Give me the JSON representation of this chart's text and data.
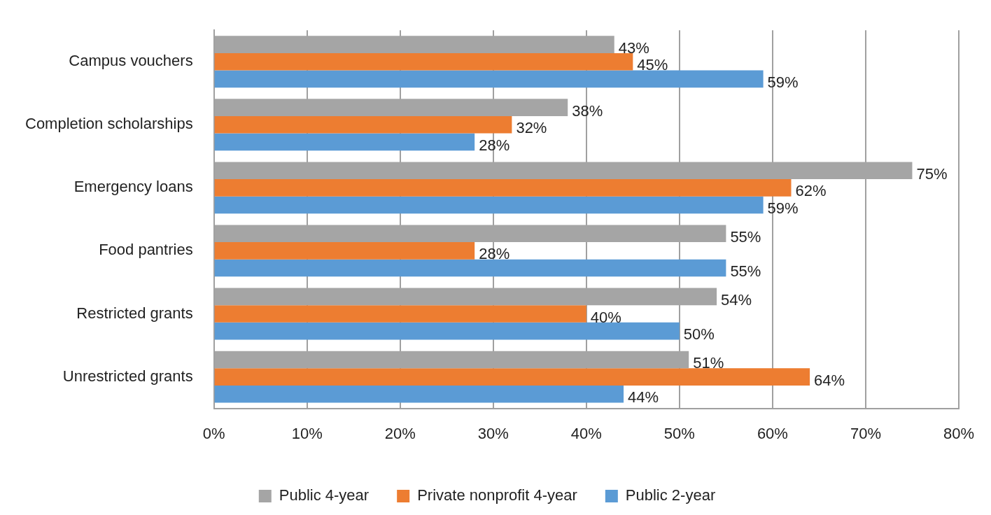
{
  "chart_data": {
    "type": "bar",
    "orientation": "horizontal",
    "categories": [
      "Campus vouchers",
      "Completion scholarships",
      "Emergency loans",
      "Food pantries",
      "Restricted grants",
      "Unrestricted grants"
    ],
    "series": [
      {
        "name": "Public 4-year",
        "color": "#a5a5a5",
        "values": [
          43,
          38,
          75,
          55,
          54,
          51
        ],
        "value_labels": [
          "43%",
          "38%",
          "75%",
          "55%",
          "54%",
          "51%"
        ]
      },
      {
        "name": "Private nonprofit 4-year",
        "color": "#ed7d31",
        "values": [
          45,
          32,
          62,
          28,
          40,
          64
        ],
        "value_labels": [
          "45%",
          "32%",
          "62%",
          "28%",
          "40%",
          "64%"
        ]
      },
      {
        "name": "Public 2-year",
        "color": "#5b9bd5",
        "values": [
          59,
          28,
          59,
          55,
          50,
          44
        ],
        "value_labels": [
          "59%",
          "28%",
          "59%",
          "55%",
          "50%",
          "44%"
        ]
      }
    ],
    "xlim": [
      0,
      80
    ],
    "xticks": [
      {
        "value": 0,
        "label": "0%"
      },
      {
        "value": 10,
        "label": "10%"
      },
      {
        "value": 20,
        "label": "20%"
      },
      {
        "value": 30,
        "label": "30%"
      },
      {
        "value": 40,
        "label": "40%"
      },
      {
        "value": 50,
        "label": "50%"
      },
      {
        "value": 60,
        "label": "60%"
      },
      {
        "value": 70,
        "label": "70%"
      },
      {
        "value": 80,
        "label": "80%"
      }
    ],
    "grid": "x",
    "legend": "bottom"
  }
}
